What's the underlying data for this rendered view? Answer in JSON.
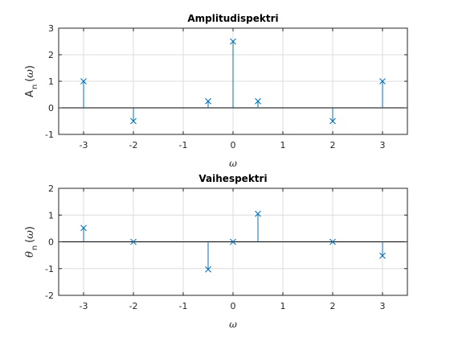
{
  "chart_data": [
    {
      "type": "stem",
      "title": "Amplitudispektri",
      "xlabel": "ω",
      "ylabel": {
        "main": "A",
        "subscript": "n",
        "arg": "ω"
      },
      "xlim": [
        -3.5,
        3.5
      ],
      "ylim": [
        -1,
        3
      ],
      "xticks": [
        -3,
        -2,
        -1,
        0,
        1,
        2,
        3
      ],
      "yticks": [
        -1,
        0,
        1,
        2,
        3
      ],
      "grid": true,
      "marker": "x",
      "series": [
        {
          "x": [
            -3,
            -2,
            -0.5,
            0,
            0.5,
            2,
            3
          ],
          "y": [
            1,
            -0.5,
            0.25,
            2.5,
            0.25,
            -0.5,
            1
          ]
        }
      ]
    },
    {
      "type": "stem",
      "title": "Vaihespektri",
      "xlabel": "ω",
      "ylabel": {
        "main": "θ",
        "subscript": "n",
        "arg": "ω"
      },
      "xlim": [
        -3.5,
        3.5
      ],
      "ylim": [
        -2,
        2
      ],
      "xticks": [
        -3,
        -2,
        -1,
        0,
        1,
        2,
        3
      ],
      "yticks": [
        -2,
        -1,
        0,
        1,
        2
      ],
      "grid": true,
      "marker": "x",
      "series": [
        {
          "x": [
            -3,
            -2,
            -0.5,
            0,
            0.5,
            2,
            3
          ],
          "y": [
            0.52,
            0,
            -1.03,
            0,
            1.05,
            0,
            -0.52
          ]
        }
      ]
    }
  ],
  "colors": {
    "series": "#0072BD",
    "grid": "#dcdcdc",
    "axes": "#262626",
    "baseline": "#000000"
  }
}
